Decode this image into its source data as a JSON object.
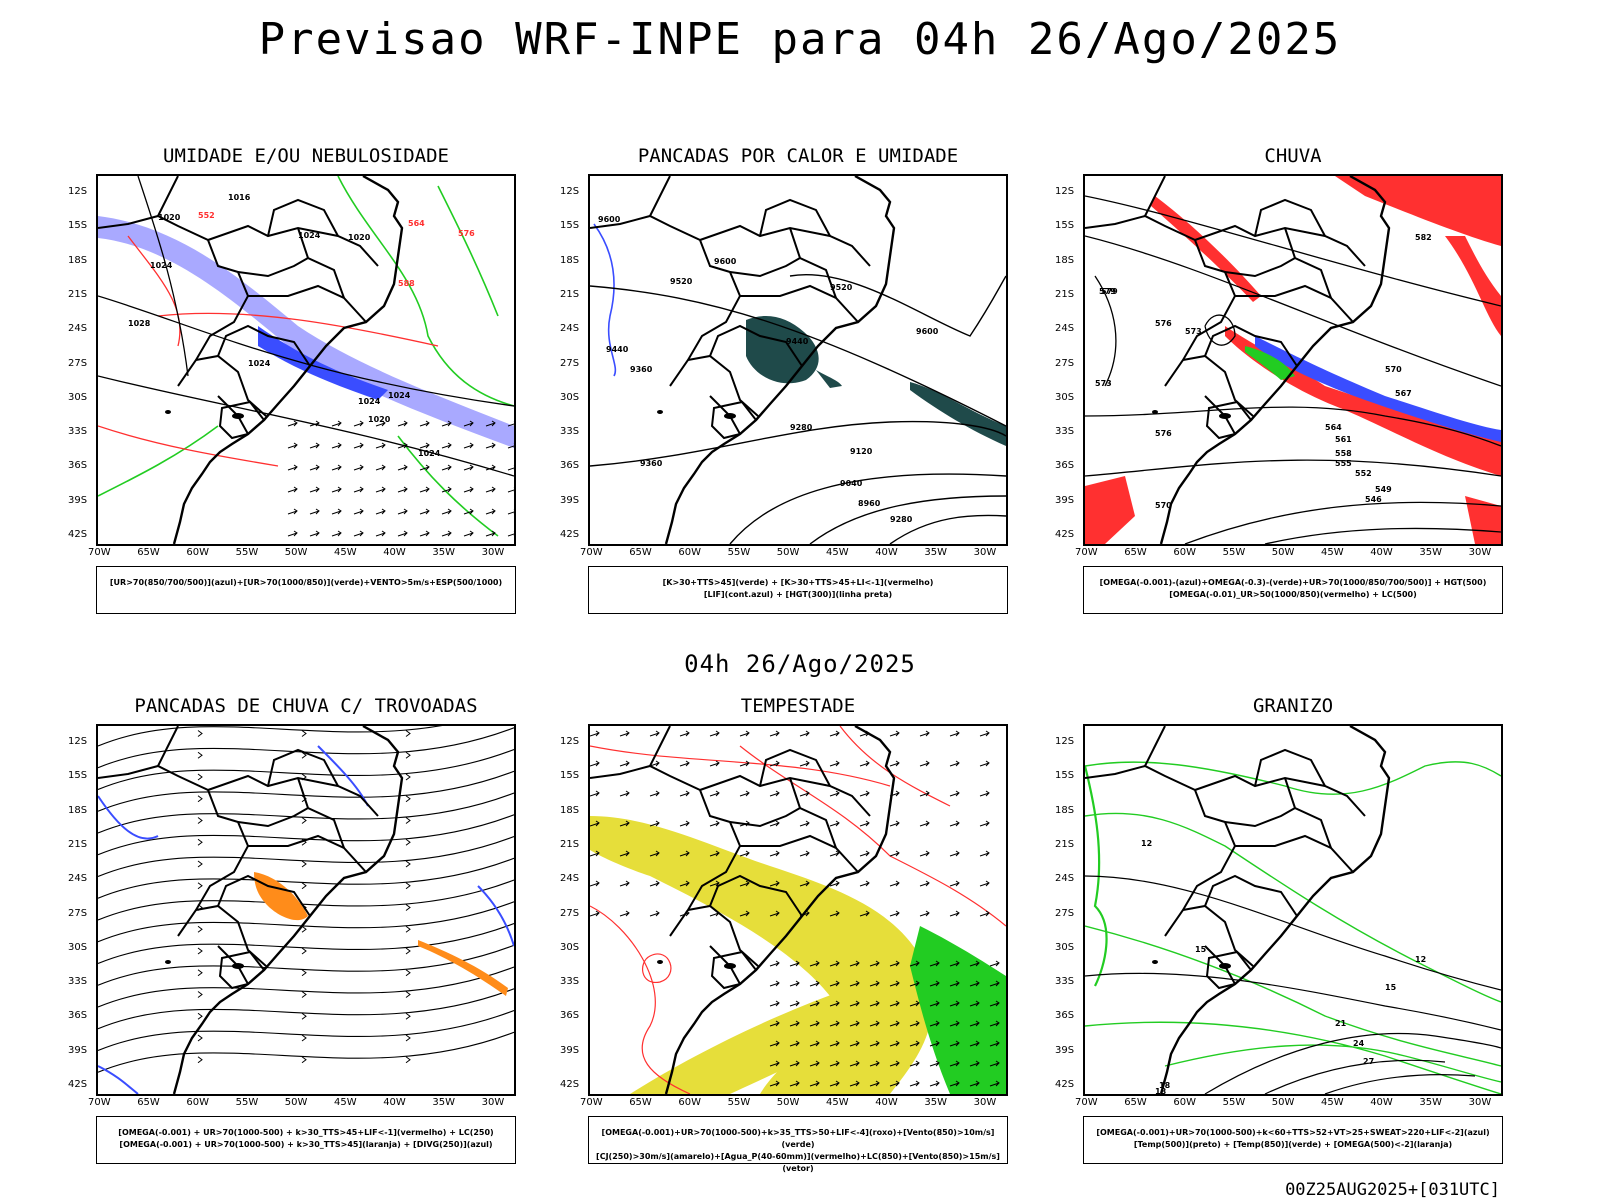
{
  "title": "Previsao WRF-INPE  para 04h 26/Ago/2025",
  "subtitle": "04h 26/Ago/2025",
  "footer": "00Z25AUG2025+[031UTC]",
  "axes": {
    "lat": [
      "12S",
      "15S",
      "18S",
      "21S",
      "24S",
      "27S",
      "30S",
      "33S",
      "36S",
      "39S",
      "42S"
    ],
    "lon": [
      "70W",
      "65W",
      "60W",
      "55W",
      "50W",
      "45W",
      "40W",
      "35W",
      "30W"
    ]
  },
  "panels": [
    {
      "title": "UMIDADE E/OU NEBULOSIDADE",
      "legend": [
        "[UR>70(850/700/500)](azul)+[UR>70(1000/850)](verde)+VENTO>5m/s+ESP(500/1000)"
      ],
      "contour_labels": [
        "1016",
        "1020",
        "1024",
        "1020",
        "1024",
        "1028",
        "1024",
        "1024",
        "1024",
        "1020",
        "1024",
        "552",
        "564",
        "576",
        "588"
      ]
    },
    {
      "title": "PANCADAS POR CALOR E UMIDADE",
      "legend": [
        "[K>30+TTS>45](verde) + [K>30+TTS>45+LI<-1](vermelho)",
        "[LIF](cont.azul) + [HGT(300)](linha preta)"
      ],
      "contour_labels": [
        "9600",
        "9520",
        "9600",
        "9520",
        "9440",
        "9600",
        "9440",
        "9360",
        "9360",
        "9280",
        "9120",
        "9040",
        "8960",
        "9280"
      ]
    },
    {
      "title": "CHUVA",
      "legend": [
        "[OMEGA(-0.001)-(azul)+OMEGA(-0.3)-(verde)+UR>70(1000/850/700/500)] + HGT(500)",
        "[OMEGA(-0.01)_UR>50(1000/850)(vermelho) + LC(500)"
      ],
      "contour_labels": [
        "582",
        "579",
        "576",
        "573",
        "570",
        "567",
        "564",
        "561",
        "558",
        "555",
        "552",
        "549",
        "546",
        "579",
        "576",
        "573",
        "570"
      ]
    },
    {
      "title": "PANCADAS DE CHUVA C/ TROVOADAS",
      "legend": [
        "[OMEGA(-0.001) + UR>70(1000-500) + k>30_TTS>45+LIF<-1](vermelho) + LC(250)",
        "[OMEGA(-0.001) + UR>70(1000-500) + k>30_TTS>45](laranja) + [DIVG(250)](azul)"
      ],
      "contour_labels": []
    },
    {
      "title": "TEMPESTADE",
      "legend": [
        "[OMEGA(-0.001)+UR>70(1000-500)+k>35_TTS>50+LIF<-4](roxo)+[Vento(850)>10m/s](verde)",
        "[CJ(250)>30m/s](amarelo)+[Agua_P(40-60mm)](vermelho)+LC(850)+[Vento(850)>15m/s](vetor)"
      ],
      "contour_labels": []
    },
    {
      "title": "GRANIZO",
      "legend": [
        "[OMEGA(-0.001)+UR>70(1000-500)+k<60+TTS>52+VT>25+SWEAT>220+LIF<-2](azul)",
        "[Temp(500)](preto) + [Temp(850)](verde) + [OMEGA(500)<-2](laranja)"
      ],
      "contour_labels": [
        "12",
        "15",
        "12",
        "15",
        "18",
        "21",
        "24",
        "27",
        "18"
      ]
    }
  ],
  "colors": {
    "blue": "#3a4dff",
    "lightblue": "#a9a9ff",
    "green": "#22cc22",
    "red": "#ff3030",
    "yellow": "#e6de3a",
    "darkgreen": "#1f4a4a",
    "orange": "#ff8c1a"
  }
}
